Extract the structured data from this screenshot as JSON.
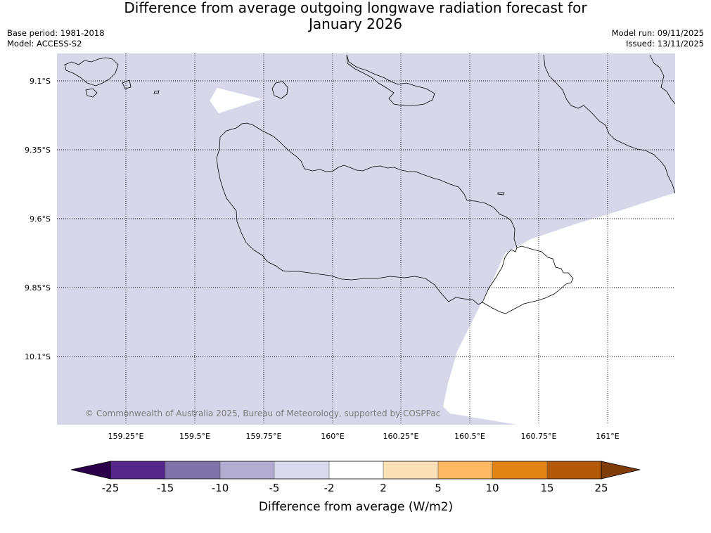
{
  "title": {
    "line1": "Difference from average outgoing longwave radiation forecast for",
    "line2": "January 2026"
  },
  "meta_left": {
    "base_period": "Base period: 1981-2018",
    "model": "Model: ACCESS-S2"
  },
  "meta_right": {
    "model_run": "Model run: 09/11/2025",
    "issued": "Issued: 13/11/2025"
  },
  "map": {
    "lat_labels": [
      "9.1°S",
      "9.35°S",
      "9.6°S",
      "9.85°S",
      "10.1°S"
    ],
    "lon_labels": [
      "159.25°E",
      "159.5°E",
      "159.75°E",
      "160°E",
      "160.25°E",
      "160.5°E",
      "160.75°E",
      "161°E"
    ],
    "copyright": "© Commonwealth of Australia 2025, Bureau of Meteorology, supported by COSPPac",
    "fill_category": "-5 to -2",
    "fill_color": "#d6d7e9"
  },
  "colorbar": {
    "title": "Difference from average (W/m2)",
    "labels": [
      "-25",
      "-15",
      "-10",
      "-5",
      "-2",
      "2",
      "5",
      "10",
      "15",
      "25"
    ],
    "colors": [
      "#542789",
      "#8073ac",
      "#b2abd2",
      "#d8daeb",
      "#ffffff",
      "#fee0b6",
      "#fdb863",
      "#e08214",
      "#b35806"
    ],
    "extend_low_color": "#2d004b",
    "extend_high_color": "#7f3b08"
  }
}
